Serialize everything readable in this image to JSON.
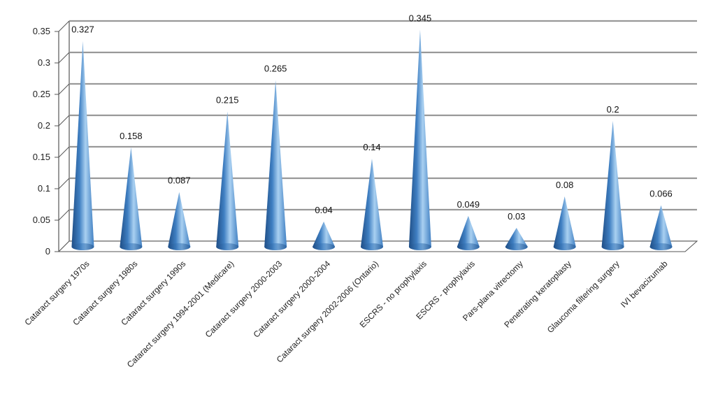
{
  "chart_data": {
    "type": "bar",
    "style": "cone-3d",
    "title": "",
    "xlabel": "",
    "ylabel": "",
    "ylim": [
      0,
      0.35
    ],
    "y_ticks": [
      "0",
      "0.05",
      "0.1",
      "0.15",
      "0.2",
      "0.25",
      "0.3",
      "0.35"
    ],
    "grid": true,
    "legend": "none",
    "categories": [
      "Cataract surgery 1970s",
      "Cataract surgery 1980s",
      "Cataract surgery 1990s",
      "Cataract surgery 1994-2001 (Medicare)",
      "Cataract surgery 2000-2003",
      "Cataract surgery 2000-2004",
      "Cataract surgery 2002-2006 (Ontario)",
      "ESCRS - no prophylaxis",
      "ESCRS - prophylaxis",
      "Pars-plana vitrectomy",
      "Penetrating keratoplasty",
      "Glaucoma filtering surgery",
      "IVI bevacizumab"
    ],
    "values": [
      0.327,
      0.158,
      0.087,
      0.215,
      0.265,
      0.04,
      0.14,
      0.345,
      0.049,
      0.03,
      0.08,
      0.2,
      0.066
    ],
    "data_labels": [
      "0.327",
      "0.158",
      "0.087",
      "0.215",
      "0.265",
      "0.04",
      "0.14",
      "0.345",
      "0.049",
      "0.03",
      "0.08",
      "0.2",
      "0.066"
    ],
    "colors": {
      "cone_dark": "#1f4e86",
      "cone_mid": "#3f7fc2",
      "cone_light": "#a9d0f1",
      "gridline": "#999999",
      "wall_line": "#555555"
    }
  }
}
